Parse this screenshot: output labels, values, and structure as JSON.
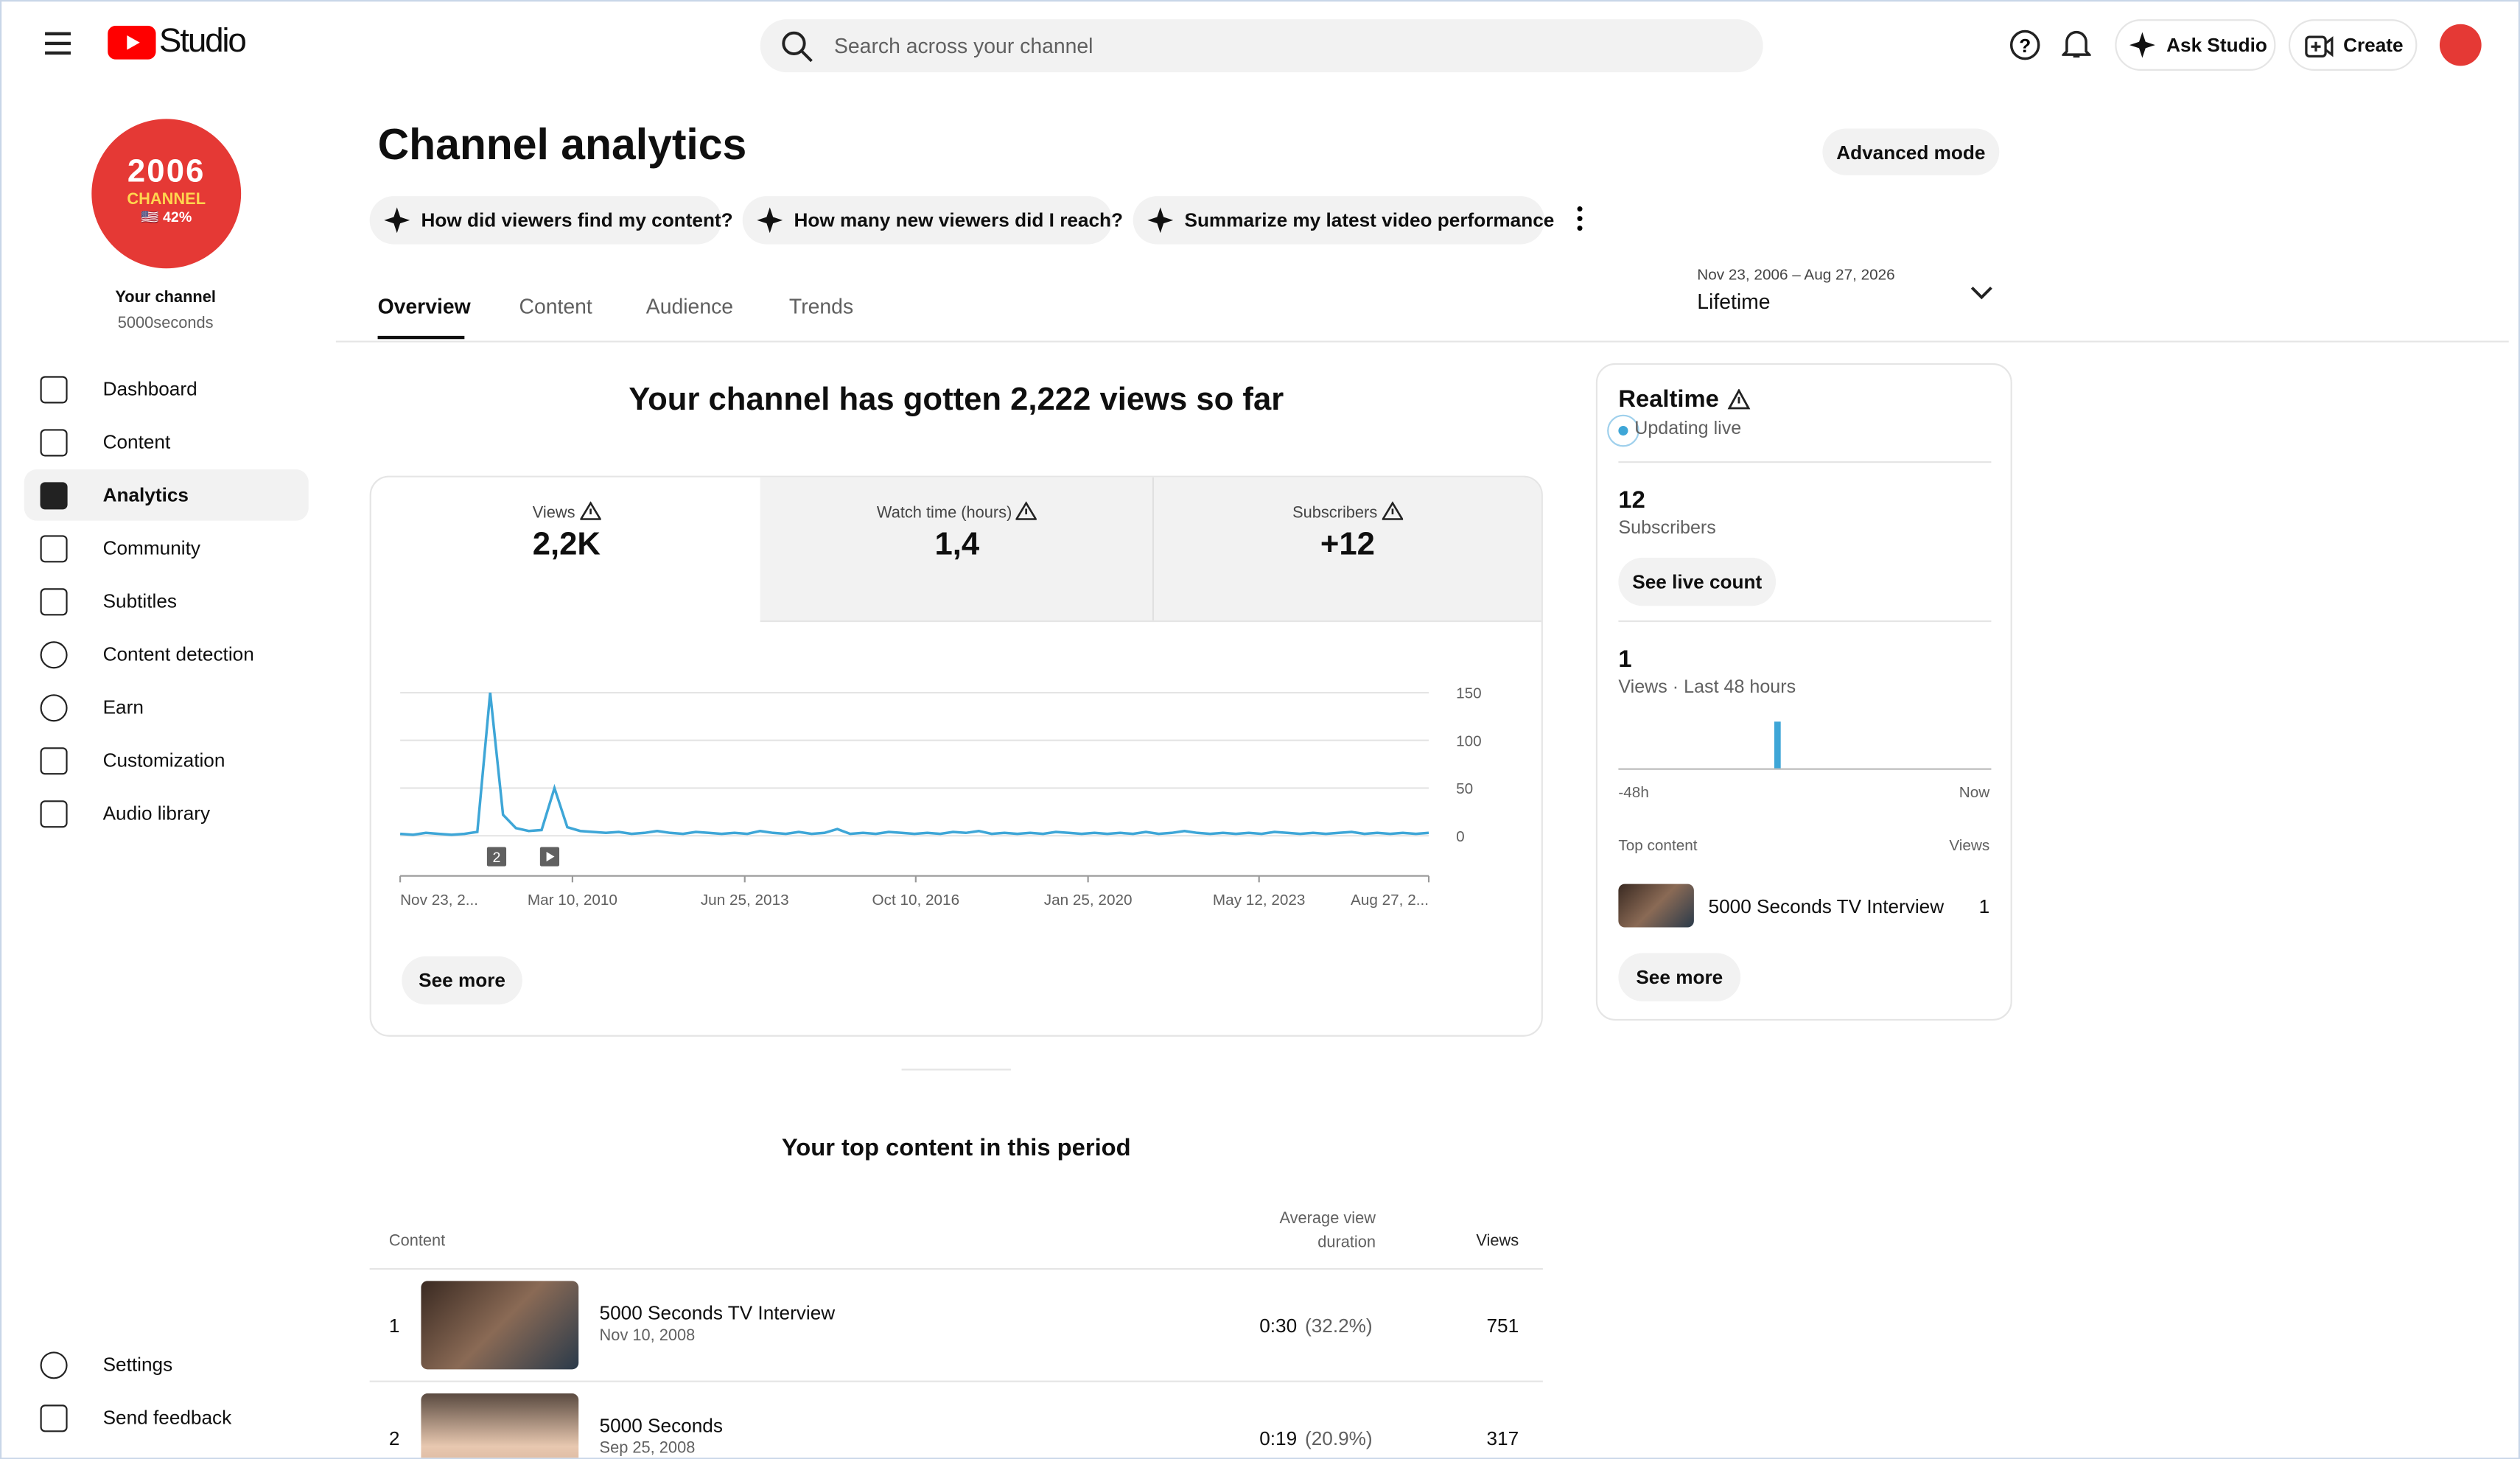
{
  "header": {
    "logo": "Studio",
    "search_placeholder": "Search across your channel",
    "ask": "Ask Studio",
    "create": "Create"
  },
  "sidebar": {
    "avatar": {
      "line1": "2006",
      "line2": "CHANNEL",
      "line3": "🇺🇸 42%"
    },
    "channel_label": "Your channel",
    "channel_name": "5000seconds",
    "items": [
      "Dashboard",
      "Content",
      "Analytics",
      "Community",
      "Subtitles",
      "Content detection",
      "Earn",
      "Customization",
      "Audio library"
    ],
    "bottom": [
      "Settings",
      "Send feedback"
    ]
  },
  "page": {
    "title": "Channel analytics",
    "advanced": "Advanced mode",
    "prompts": [
      "How did viewers find my content?",
      "How many new viewers did I reach?",
      "Summarize my latest video performance"
    ],
    "tabs": [
      "Overview",
      "Content",
      "Audience",
      "Trends"
    ],
    "date_range": "Nov 23, 2006 – Aug 27, 2026",
    "period": "Lifetime",
    "headline": "Your channel has gotten 2,222 views so far"
  },
  "metrics": [
    {
      "label": "Views",
      "value": "2,2K"
    },
    {
      "label": "Watch time (hours)",
      "value": "1,4"
    },
    {
      "label": "Subscribers",
      "value": "+12"
    }
  ],
  "chart_data": {
    "type": "line",
    "color": "#3ea6d7",
    "values": [
      2,
      1,
      3,
      2,
      1,
      2,
      4,
      150,
      22,
      8,
      5,
      6,
      50,
      9,
      5,
      4,
      3,
      4,
      2,
      3,
      5,
      3,
      2,
      4,
      3,
      2,
      3,
      2,
      5,
      3,
      2,
      4,
      2,
      3,
      7,
      2,
      3,
      2,
      4,
      3,
      2,
      3,
      2,
      4,
      3,
      5,
      2,
      3,
      2,
      3,
      2,
      4,
      3,
      2,
      3,
      2,
      3,
      2,
      4,
      2,
      3,
      5,
      3,
      2,
      3,
      2,
      3,
      2,
      4,
      3,
      2,
      3,
      2,
      3,
      4,
      2,
      3,
      2,
      3,
      2,
      3
    ],
    "ylim": [
      0,
      150
    ],
    "yticks": [
      0,
      50,
      100,
      150
    ],
    "grid": true,
    "xlim": [
      0,
      80
    ],
    "xticks": [
      {
        "value": 0,
        "label": "Nov 23, 2..."
      },
      {
        "value": 13.4,
        "label": "Mar 10, 2010"
      },
      {
        "value": 26.8,
        "label": "Jun 25, 2013"
      },
      {
        "value": 40.1,
        "label": "Oct 10, 2016"
      },
      {
        "value": 53.5,
        "label": "Jan 25, 2020"
      },
      {
        "value": 66.8,
        "label": "May 12, 2023"
      },
      {
        "value": 80,
        "label": "Aug 27, 2..."
      }
    ],
    "annotation": "2"
  },
  "see_more": "See more",
  "realtime": {
    "title": "Realtime",
    "status": "Updating live",
    "subscribers": "12",
    "subscribers_label": "Subscribers",
    "live_count": "See live count",
    "views": "1",
    "views_count": 1,
    "views_label": "Views · Last 48 hours",
    "axis_start": "-48h",
    "axis_end": "Now",
    "top_label": "Top content",
    "top_views_label": "Views",
    "top_item": "5000 Seconds TV Interview",
    "top_item_views": "1",
    "see_more": "See more"
  },
  "top_content": {
    "title": "Your top content in this period",
    "headers": [
      "Content",
      "Average view duration",
      "Views"
    ],
    "rows": [
      {
        "rank": "1",
        "title": "5000 Seconds TV Interview",
        "date": "Nov 10, 2008",
        "duration": "0:30",
        "percent": "(32.2%)",
        "views": "751"
      },
      {
        "rank": "2",
        "title": "5000 Seconds",
        "date": "Sep 25, 2008",
        "duration": "0:19",
        "percent": "(20.9%)",
        "views": "317"
      }
    ]
  }
}
